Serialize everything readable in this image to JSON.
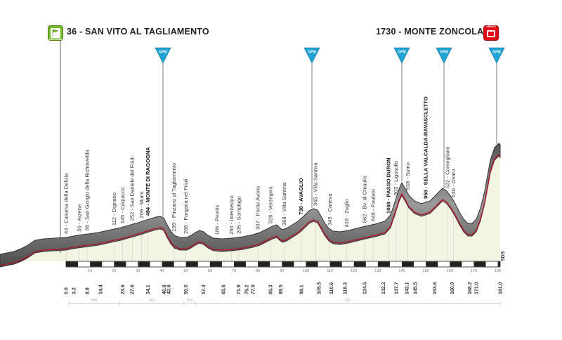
{
  "header": {
    "start_label": "36 - SAN VITO AL TAGLIAMENTO",
    "finish_label": "1730 - MONTE ZONCOLAN",
    "start_badge_text": "PARTENZA",
    "finish_badge_text": "ARRIVO"
  },
  "climb_marker_text": "GPM",
  "bottom_right_label": "SDS",
  "colors": {
    "profile_fill": "#f3f4e1",
    "road_band": "#8e8e8e",
    "road_dark": "#333333",
    "red_line": "#b3122a",
    "marker_blue": "#1ea3d4",
    "start_green": "#76b82a",
    "finish_red": "#e30613"
  },
  "places": [
    {
      "km": 0.0,
      "label": "44 - Casarsa della Delizia",
      "bold": false
    },
    {
      "km": 5.5,
      "label": "56 - Arzene",
      "bold": false
    },
    {
      "km": 8.8,
      "label": "86 - San Giorgio della Richinvelda",
      "bold": false
    },
    {
      "km": 20.0,
      "label": "112 - Dignano",
      "bold": false
    },
    {
      "km": 23.6,
      "label": "145 - Carpacco",
      "bold": false
    },
    {
      "km": 27.6,
      "label": "252 - San Daniele del Friuli",
      "bold": false
    },
    {
      "km": 31.5,
      "label": "209 - Muris",
      "bold": false
    },
    {
      "km": 34.1,
      "label": "494 - MONTE DI RAGOGNA",
      "bold": true
    },
    {
      "km": 45.0,
      "label": "199 - Pinzano al Tagliamento",
      "bold": false
    },
    {
      "km": 50.0,
      "label": "268 - Forgaria nel Friuli",
      "bold": false
    },
    {
      "km": 63.0,
      "label": "186 - Peonis",
      "bold": false
    },
    {
      "km": 69.0,
      "label": "250 - Interneppo",
      "bold": false
    },
    {
      "km": 72.0,
      "label": "205 - Somplago",
      "bold": false
    },
    {
      "km": 80.0,
      "label": "307 - Ponte Avons",
      "bold": false
    },
    {
      "km": 85.3,
      "label": "526 - Verzegnis",
      "bold": false
    },
    {
      "km": 91.0,
      "label": "368 - Villa Santina",
      "bold": false
    },
    {
      "km": 98.0,
      "label": "738 - AVAGLIO",
      "bold": true
    },
    {
      "km": 104.0,
      "label": "365 - Villa Santina",
      "bold": false
    },
    {
      "km": 110.0,
      "label": "345 - Caneva",
      "bold": false
    },
    {
      "km": 117.0,
      "label": "418 - Zuglio",
      "bold": false
    },
    {
      "km": 124.5,
      "label": "562 - Bv. di Chiaulis",
      "bold": false
    },
    {
      "km": 128.0,
      "label": "648 - Paularo",
      "bold": false
    },
    {
      "km": 134.5,
      "label": "1069 - PASSO DURON",
      "bold": true
    },
    {
      "km": 137.5,
      "label": "903 - Ligosullo",
      "bold": false
    },
    {
      "km": 142.5,
      "label": "538 - Sutrio",
      "bold": false
    },
    {
      "km": 150.0,
      "label": "958 - SELLA VALCALDA-RAVASCLETTO",
      "bold": true
    },
    {
      "km": 159.0,
      "label": "532 - Comeglians",
      "bold": false
    },
    {
      "km": 161.5,
      "label": "530 - Ovaro",
      "bold": false
    }
  ],
  "km_labels": [
    "0.0",
    "3.2",
    "8.8",
    "14.4",
    "23.6",
    "27.6",
    "34.1",
    "40.8",
    "42.8",
    "50.0",
    "57.3",
    "65.6",
    "71.9",
    "75.2",
    "77.9",
    "85.3",
    "89.5",
    "98.1",
    "105.5",
    "110.6",
    "116.3",
    "124.5",
    "132.2",
    "137.7",
    "142.1",
    "145.5",
    "153.6",
    "160.9",
    "168.2",
    "171.0",
    "181.0"
  ],
  "km_bold": [
    "0.0",
    "42.8",
    "105.5",
    "142.1",
    "160.9",
    "181.0"
  ],
  "axis_ticks": [
    "10",
    "20",
    "30",
    "40",
    "50",
    "60",
    "70",
    "80",
    "90",
    "100",
    "110",
    "120",
    "130",
    "140",
    "150",
    "160",
    "170",
    "180"
  ],
  "sections": [
    "PM",
    "UD",
    "PN",
    "UD"
  ]
}
